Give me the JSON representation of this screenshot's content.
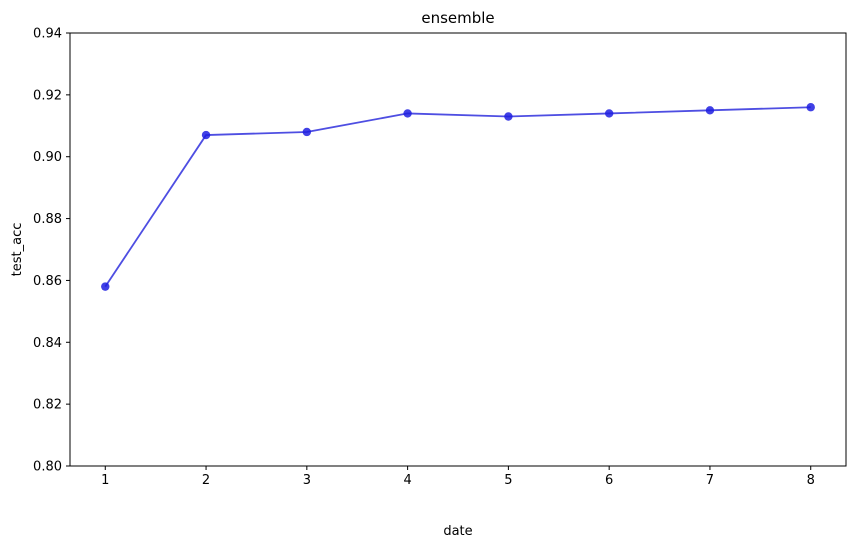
{
  "chart_data": {
    "type": "line",
    "title": "ensemble",
    "xlabel": "date",
    "ylabel": "test_acc",
    "x": [
      1,
      2,
      3,
      4,
      5,
      6,
      7,
      8
    ],
    "series": [
      {
        "values": [
          0.858,
          0.907,
          0.908,
          0.914,
          0.913,
          0.914,
          0.915,
          0.916
        ]
      }
    ],
    "xticks": [
      "1",
      "2",
      "3",
      "4",
      "5",
      "6",
      "7",
      "8"
    ],
    "yticks": [
      "0.80",
      "0.82",
      "0.84",
      "0.86",
      "0.88",
      "0.90",
      "0.92",
      "0.94"
    ],
    "xlim": [
      0.65,
      8.35
    ],
    "ylim": [
      0.8,
      0.94
    ],
    "grid": false,
    "line_color": "#3b3bdf",
    "marker_color": "#1f1fe0"
  }
}
